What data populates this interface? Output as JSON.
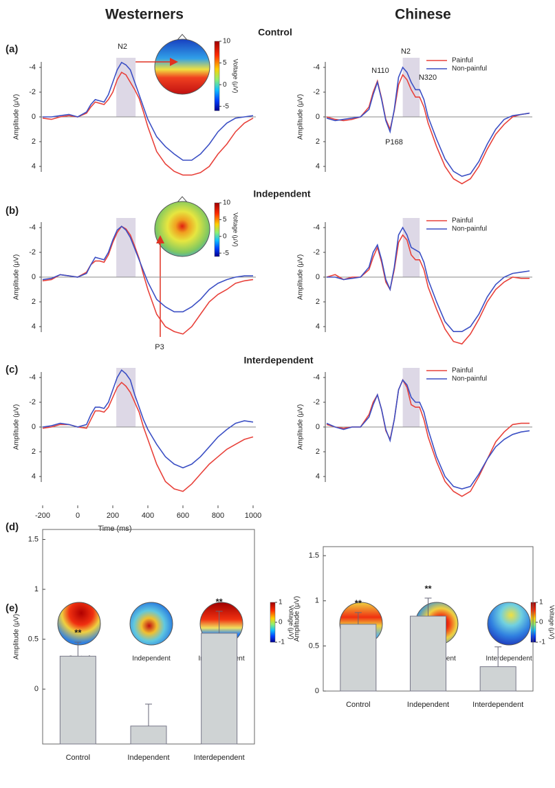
{
  "column_titles": [
    "Westerners",
    "Chinese"
  ],
  "panel_labels": [
    "(a)",
    "(b)",
    "(c)",
    "(d)",
    "(e)"
  ],
  "condition_titles": [
    "Control",
    "Independent",
    "Interdependent"
  ],
  "colorbars": [
    {
      "ylim": [
        -6,
        10
      ],
      "yticks": [
        10,
        5,
        0,
        -5
      ],
      "label": "Voltage (μV)"
    },
    {
      "ylim": [
        -6,
        10
      ],
      "yticks": [
        10,
        5,
        0,
        -5
      ],
      "label": "Voltage (μV)"
    },
    {
      "ylim": [
        -1,
        1
      ],
      "yticks": [
        1,
        0,
        -1
      ],
      "label": "Voltage (μV)"
    },
    {
      "ylim": [
        -1,
        1
      ],
      "yticks": [
        1,
        0,
        -1
      ],
      "label": "Voltage (μV)"
    }
  ],
  "topomap_labels": [
    [
      "Control",
      "Independent",
      "Interdependent"
    ],
    [
      "Control",
      "Independent",
      "Interdependent"
    ]
  ],
  "chart_data": [
    {
      "type": "line",
      "x": [
        -200,
        -150,
        -100,
        -50,
        0,
        50,
        75,
        100,
        125,
        150,
        175,
        200,
        225,
        250,
        275,
        300,
        325,
        350,
        375,
        400,
        450,
        500,
        550,
        600,
        650,
        700,
        750,
        800,
        850,
        900,
        950,
        1000
      ],
      "xlim": [
        -200,
        1000
      ],
      "ylim": [
        -5,
        6
      ],
      "y_inverted": true,
      "yticks": [
        -4,
        -2,
        0,
        2,
        4
      ],
      "y_label": "Amplitude (μV)",
      "window": [
        220,
        330
      ],
      "annotations": [
        "N2"
      ],
      "series": [
        {
          "color": "#e8413a",
          "values": [
            0.1,
            0.2,
            0.0,
            -0.1,
            0.0,
            -0.3,
            -0.8,
            -1.2,
            -1.1,
            -1.0,
            -1.4,
            -2.0,
            -3.0,
            -3.6,
            -3.4,
            -2.8,
            -2.2,
            -1.5,
            -0.4,
            0.8,
            2.8,
            3.8,
            4.4,
            4.7,
            4.7,
            4.5,
            4.0,
            3.0,
            2.2,
            1.2,
            0.5,
            0.1
          ]
        },
        {
          "color": "#3b4fc4",
          "values": [
            0.0,
            0.0,
            -0.1,
            -0.2,
            0.0,
            -0.4,
            -1.0,
            -1.4,
            -1.3,
            -1.2,
            -1.8,
            -2.8,
            -3.8,
            -4.4,
            -4.2,
            -3.8,
            -2.8,
            -1.8,
            -0.8,
            0.2,
            1.6,
            2.4,
            3.0,
            3.5,
            3.5,
            3.0,
            2.2,
            1.2,
            0.5,
            0.1,
            0.0,
            -0.1
          ]
        }
      ]
    },
    {
      "type": "line",
      "x": [
        -200,
        -150,
        -100,
        -50,
        0,
        50,
        75,
        100,
        125,
        150,
        175,
        200,
        225,
        250,
        275,
        300,
        325,
        350,
        375,
        400,
        450,
        500,
        550,
        600,
        650,
        700,
        750,
        800,
        850,
        900,
        950,
        1000
      ],
      "xlim": [
        -200,
        1000
      ],
      "ylim": [
        -5,
        6
      ],
      "y_inverted": true,
      "yticks": [
        -4,
        -2,
        0,
        2,
        4
      ],
      "y_label": "Amplitude (μV)",
      "window": [
        250,
        350
      ],
      "annotations": [
        "N110",
        "N2",
        "P168",
        "N320"
      ],
      "legend": "upper right",
      "series": [
        {
          "name": "Painful",
          "color": "#e8413a",
          "values": [
            0.0,
            0.2,
            0.3,
            0.2,
            0.0,
            -0.8,
            -2.0,
            -2.9,
            -1.5,
            0.2,
            1.0,
            -0.5,
            -2.6,
            -3.4,
            -3.0,
            -2.2,
            -1.6,
            -1.6,
            -0.8,
            0.5,
            2.4,
            4.0,
            5.0,
            5.4,
            5.0,
            4.0,
            2.6,
            1.4,
            0.6,
            0.0,
            -0.2,
            -0.3
          ]
        },
        {
          "name": "Non-painful",
          "color": "#3b4fc4",
          "values": [
            0.1,
            0.3,
            0.2,
            0.1,
            0.0,
            -0.6,
            -1.8,
            -2.8,
            -1.4,
            0.3,
            1.2,
            -0.6,
            -3.2,
            -4.0,
            -3.6,
            -2.8,
            -2.2,
            -2.2,
            -1.4,
            0.0,
            1.8,
            3.4,
            4.4,
            4.8,
            4.6,
            3.6,
            2.2,
            1.0,
            0.2,
            -0.1,
            -0.2,
            -0.3
          ]
        }
      ]
    },
    {
      "type": "line",
      "x": [
        -200,
        -150,
        -100,
        -50,
        0,
        50,
        75,
        100,
        125,
        150,
        175,
        200,
        225,
        250,
        275,
        300,
        325,
        350,
        375,
        400,
        450,
        500,
        550,
        600,
        650,
        700,
        750,
        800,
        850,
        900,
        950,
        1000
      ],
      "xlim": [
        -200,
        1000
      ],
      "ylim": [
        -5,
        6
      ],
      "y_inverted": true,
      "yticks": [
        -4,
        -2,
        0,
        2,
        4
      ],
      "y_label": "Amplitude (μV)",
      "window": [
        220,
        330
      ],
      "annotations": [
        "P3"
      ],
      "series": [
        {
          "color": "#e8413a",
          "values": [
            0.3,
            0.2,
            -0.2,
            -0.1,
            0.0,
            -0.4,
            -1.0,
            -1.3,
            -1.3,
            -1.2,
            -1.8,
            -2.8,
            -3.6,
            -4.1,
            -3.9,
            -3.4,
            -2.5,
            -1.5,
            -0.2,
            1.0,
            3.0,
            4.0,
            4.4,
            4.6,
            4.0,
            3.0,
            2.0,
            1.4,
            1.0,
            0.5,
            0.3,
            0.2
          ]
        },
        {
          "color": "#3b4fc4",
          "values": [
            0.2,
            0.1,
            -0.2,
            -0.1,
            0.0,
            -0.3,
            -1.0,
            -1.6,
            -1.5,
            -1.4,
            -2.0,
            -3.0,
            -3.8,
            -4.1,
            -3.8,
            -3.2,
            -2.3,
            -1.4,
            -0.5,
            0.4,
            1.8,
            2.4,
            2.8,
            2.8,
            2.4,
            1.8,
            1.0,
            0.5,
            0.2,
            0.0,
            -0.1,
            -0.1
          ]
        }
      ]
    },
    {
      "type": "line",
      "x": [
        -200,
        -150,
        -100,
        -50,
        0,
        50,
        75,
        100,
        125,
        150,
        175,
        200,
        225,
        250,
        275,
        300,
        325,
        350,
        375,
        400,
        450,
        500,
        550,
        600,
        650,
        700,
        750,
        800,
        850,
        900,
        950,
        1000
      ],
      "xlim": [
        -200,
        1000
      ],
      "ylim": [
        -5,
        6
      ],
      "y_inverted": true,
      "yticks": [
        -4,
        -2,
        0,
        2,
        4
      ],
      "y_label": "Amplitude (μV)",
      "window": [
        250,
        350
      ],
      "legend": "upper right",
      "series": [
        {
          "name": "Painful",
          "color": "#e8413a",
          "values": [
            0.0,
            -0.2,
            0.2,
            0.0,
            0.0,
            -0.6,
            -1.6,
            -2.4,
            -1.2,
            0.4,
            1.0,
            -0.6,
            -2.8,
            -3.4,
            -3.0,
            -1.8,
            -1.4,
            -1.4,
            -0.6,
            0.8,
            2.6,
            4.2,
            5.2,
            5.4,
            4.6,
            3.4,
            2.0,
            1.0,
            0.4,
            0.0,
            0.1,
            0.1
          ]
        },
        {
          "name": "Non-painful",
          "color": "#3b4fc4",
          "values": [
            0.0,
            0.0,
            0.2,
            0.1,
            0.0,
            -0.8,
            -2.0,
            -2.6,
            -1.4,
            0.2,
            1.0,
            -0.8,
            -3.4,
            -4.0,
            -3.4,
            -2.4,
            -2.2,
            -2.0,
            -1.2,
            0.2,
            2.0,
            3.6,
            4.4,
            4.4,
            4.0,
            3.0,
            1.6,
            0.6,
            0.0,
            -0.3,
            -0.4,
            -0.5
          ]
        }
      ]
    },
    {
      "type": "line",
      "x": [
        -200,
        -150,
        -100,
        -50,
        0,
        50,
        75,
        100,
        125,
        150,
        175,
        200,
        225,
        250,
        275,
        300,
        325,
        350,
        375,
        400,
        450,
        500,
        550,
        600,
        650,
        700,
        750,
        800,
        850,
        900,
        950,
        1000
      ],
      "xlim": [
        -200,
        1000
      ],
      "ylim": [
        -5,
        6
      ],
      "y_inverted": true,
      "yticks": [
        -4,
        -2,
        0,
        2,
        4
      ],
      "y_label": "Amplitude (μV)",
      "window": [
        220,
        330
      ],
      "xticks": [
        -200,
        0,
        200,
        400,
        600,
        800,
        1000
      ],
      "x_label": "Time (ms)",
      "series": [
        {
          "color": "#e8413a",
          "values": [
            0.1,
            0.0,
            -0.2,
            -0.2,
            0.0,
            0.1,
            -0.6,
            -1.3,
            -1.3,
            -1.2,
            -1.6,
            -2.4,
            -3.2,
            -3.6,
            -3.3,
            -2.8,
            -2.0,
            -1.2,
            0.0,
            1.0,
            3.0,
            4.4,
            5.0,
            5.2,
            4.6,
            3.8,
            3.0,
            2.4,
            1.8,
            1.4,
            1.0,
            0.8
          ]
        },
        {
          "color": "#3b4fc4",
          "values": [
            0.0,
            -0.1,
            -0.3,
            -0.2,
            0.0,
            -0.2,
            -1.0,
            -1.6,
            -1.6,
            -1.5,
            -2.0,
            -3.0,
            -4.0,
            -4.6,
            -4.3,
            -3.8,
            -2.6,
            -1.6,
            -0.6,
            0.2,
            1.4,
            2.4,
            3.0,
            3.3,
            3.0,
            2.4,
            1.6,
            0.8,
            0.2,
            -0.3,
            -0.5,
            -0.4
          ]
        }
      ]
    },
    {
      "type": "line",
      "x": [
        -200,
        -150,
        -100,
        -50,
        0,
        50,
        75,
        100,
        125,
        150,
        175,
        200,
        225,
        250,
        275,
        300,
        325,
        350,
        375,
        400,
        450,
        500,
        550,
        600,
        650,
        700,
        750,
        800,
        850,
        900,
        950,
        1000
      ],
      "xlim": [
        -200,
        1000
      ],
      "ylim": [
        -5,
        6
      ],
      "y_inverted": true,
      "yticks": [
        -4,
        -2,
        0,
        2,
        4
      ],
      "y_label": "Amplitude (μV)",
      "window": [
        250,
        350
      ],
      "legend": "upper right",
      "series": [
        {
          "name": "Painful",
          "color": "#e8413a",
          "values": [
            -0.2,
            0.0,
            0.1,
            0.0,
            0.0,
            -1.0,
            -2.0,
            -2.6,
            -1.4,
            0.3,
            1.0,
            -0.6,
            -3.0,
            -3.8,
            -3.2,
            -1.8,
            -1.6,
            -1.6,
            -0.6,
            0.8,
            2.8,
            4.4,
            5.2,
            5.6,
            5.2,
            4.0,
            2.6,
            1.2,
            0.4,
            -0.2,
            -0.3,
            -0.3
          ]
        },
        {
          "name": "Non-painful",
          "color": "#3b4fc4",
          "values": [
            -0.3,
            0.0,
            0.2,
            0.0,
            0.0,
            -0.8,
            -1.8,
            -2.6,
            -1.4,
            0.2,
            1.1,
            -0.6,
            -3.0,
            -3.8,
            -3.4,
            -2.4,
            -2.0,
            -2.0,
            -1.2,
            0.2,
            2.4,
            4.0,
            4.8,
            5.0,
            4.8,
            3.8,
            2.6,
            1.6,
            1.0,
            0.6,
            0.4,
            0.3
          ]
        }
      ]
    },
    {
      "type": "bar",
      "categories": [
        "Control",
        "Independent",
        "Interdependent"
      ],
      "values": [
        0.33,
        -0.37,
        0.56
      ],
      "errors": [
        0.14,
        0.22,
        0.22
      ],
      "significance": [
        "**",
        null,
        "**"
      ],
      "color": "#cfd3d4",
      "ylim": [
        -0.55,
        1.6
      ],
      "yticks": [
        0,
        0.5,
        1,
        1.5
      ],
      "y_label": "Amplitude (μV)"
    },
    {
      "type": "bar",
      "categories": [
        "Control",
        "Independent",
        "Interdependent"
      ],
      "values": [
        0.74,
        0.83,
        0.27
      ],
      "errors": [
        0.13,
        0.2,
        0.22
      ],
      "significance": [
        "**",
        "**",
        null
      ],
      "color": "#cfd3d4",
      "ylim": [
        0,
        1.6
      ],
      "yticks": [
        0,
        0.5,
        1,
        1.5
      ],
      "y_label": "Amplitude (μV)"
    }
  ]
}
